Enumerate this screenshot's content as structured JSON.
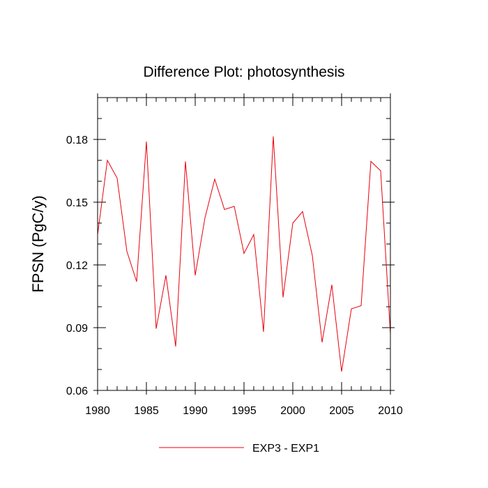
{
  "chart_data": {
    "type": "line",
    "title": "Difference Plot: photosynthesis",
    "xlabel": "",
    "ylabel": "FPSN  (PgC/y)",
    "xlim": [
      1980,
      2010
    ],
    "ylim": [
      0.06,
      0.2
    ],
    "x_ticks": [
      1980,
      1985,
      1990,
      1995,
      2000,
      2005,
      2010
    ],
    "x_tick_labels": [
      "1980",
      "1985",
      "1990",
      "1995",
      "2000",
      "2005",
      "2010"
    ],
    "y_ticks": [
      0.06,
      0.09,
      0.12,
      0.15,
      0.18
    ],
    "y_tick_labels": [
      "0.06",
      "0.09",
      "0.12",
      "0.15",
      "0.18"
    ],
    "grid": false,
    "legend": {
      "position": "bottom-center"
    },
    "x": [
      1980,
      1981,
      1982,
      1983,
      1984,
      1985,
      1986,
      1987,
      1988,
      1989,
      1990,
      1991,
      1992,
      1993,
      1994,
      1995,
      1996,
      1997,
      1998,
      1999,
      2000,
      2001,
      2002,
      2003,
      2004,
      2005,
      2006,
      2007,
      2008,
      2009,
      2010
    ],
    "series": [
      {
        "name": "EXP3 - EXP1",
        "color": "#e8000b",
        "values": [
          0.1345,
          0.17,
          0.1615,
          0.1265,
          0.112,
          0.179,
          0.0895,
          0.115,
          0.081,
          0.1695,
          0.115,
          0.1425,
          0.161,
          0.1465,
          0.148,
          0.1255,
          0.1345,
          0.088,
          0.1815,
          0.1045,
          0.14,
          0.1455,
          0.1245,
          0.083,
          0.1105,
          0.069,
          0.099,
          0.1005,
          0.1695,
          0.165,
          0.087
        ]
      }
    ]
  }
}
